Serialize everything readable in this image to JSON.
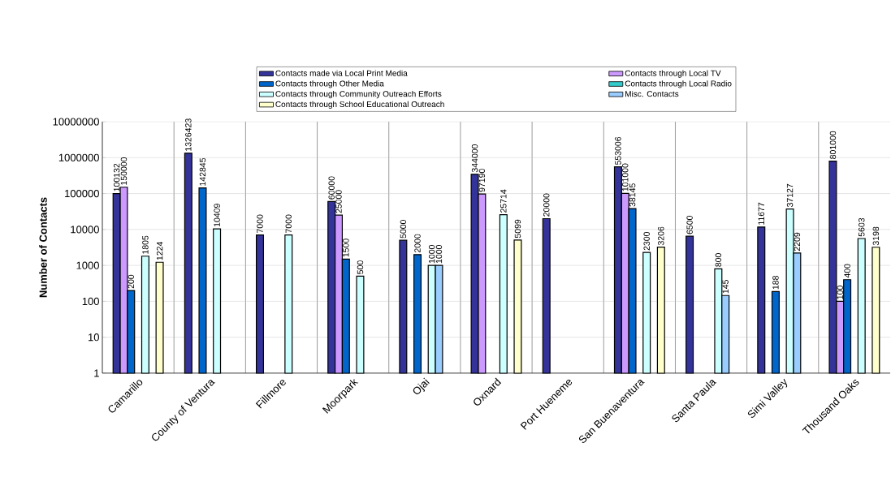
{
  "chart_data": {
    "type": "bar",
    "ylabel": "Number of Contacts",
    "categories": [
      "Camarillo",
      "County of Ventura",
      "Fillmore",
      "Moorpark",
      "Ojai",
      "Oxnard",
      "Port Hueneme",
      "San Buenaventura",
      "Santa Paula",
      "Simi Valley",
      "Thousand Oaks"
    ],
    "series": [
      {
        "name": "Contacts made via Local Print Media",
        "color": "#333399",
        "values": [
          100132,
          1326423,
          7000,
          60000,
          5000,
          344000,
          20000,
          553006,
          6500,
          11677,
          801000
        ]
      },
      {
        "name": "Contacts through Local TV",
        "color": "#cc99ff",
        "values": [
          150000,
          null,
          null,
          25000,
          null,
          97190,
          null,
          101000,
          null,
          null,
          100
        ]
      },
      {
        "name": "Contacts through Other Media",
        "color": "#0066cc",
        "values": [
          200,
          142845,
          null,
          1500,
          2000,
          null,
          null,
          38145,
          null,
          188,
          400
        ]
      },
      {
        "name": "Contacts through Local Radio",
        "color": "#33cccc",
        "values": [
          null,
          null,
          null,
          null,
          null,
          null,
          null,
          null,
          null,
          null,
          null
        ]
      },
      {
        "name": "Contacts through Community Outreach Efforts",
        "color": "#ccffff",
        "values": [
          1805,
          10409,
          7000,
          500,
          1000,
          25714,
          null,
          2300,
          800,
          37127,
          5603
        ]
      },
      {
        "name": "Misc. Contacts",
        "color": "#99ccff",
        "values": [
          null,
          null,
          null,
          null,
          1000,
          null,
          null,
          null,
          145,
          2209,
          null
        ]
      },
      {
        "name": "Contacts through School Educational Outreach",
        "color": "#ffffcc",
        "values": [
          1224,
          null,
          null,
          null,
          null,
          5099,
          null,
          3206,
          null,
          null,
          3198
        ]
      }
    ],
    "log": "y",
    "ylim": [
      1,
      10000000
    ],
    "yticks": [
      1,
      10,
      100,
      1000,
      10000,
      100000,
      1000000,
      10000000
    ],
    "grid": true,
    "legend": "top",
    "data_labels": true
  }
}
